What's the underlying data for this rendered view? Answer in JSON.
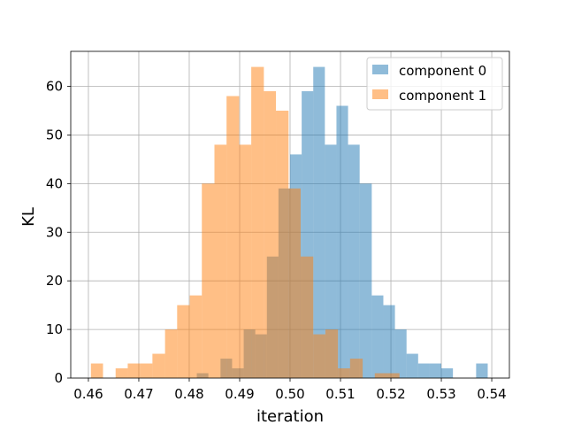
{
  "chart_data": {
    "type": "histogram",
    "xlabel": "iteration",
    "ylabel": "KL",
    "xlim": [
      0.4565,
      0.5435
    ],
    "ylim": [
      0,
      67.2
    ],
    "xticks": [
      0.46,
      0.47,
      0.48,
      0.49,
      0.5,
      0.51,
      0.52,
      0.53,
      0.54
    ],
    "xtick_labels": [
      "0.46",
      "0.47",
      "0.48",
      "0.49",
      "0.50",
      "0.51",
      "0.52",
      "0.53",
      "0.54"
    ],
    "yticks": [
      0,
      10,
      20,
      30,
      40,
      50,
      60
    ],
    "ytick_labels": [
      "0",
      "10",
      "20",
      "30",
      "40",
      "50",
      "60"
    ],
    "grid": true,
    "legend_position": "top-right",
    "series": [
      {
        "name": "component 0",
        "color": "#1f77b4",
        "alpha": 0.5,
        "bin_edges": [
          0.4815,
          0.4838,
          0.4862,
          0.4885,
          0.4908,
          0.4931,
          0.4954,
          0.4977,
          0.5,
          0.5023,
          0.5046,
          0.5069,
          0.5092,
          0.5115,
          0.5138,
          0.5162,
          0.5185,
          0.5208,
          0.5231,
          0.5254,
          0.5277,
          0.53,
          0.5323,
          0.5346,
          0.5369,
          0.5392
        ],
        "counts": [
          1,
          0,
          4,
          2,
          10,
          9,
          25,
          39,
          46,
          59,
          64,
          48,
          56,
          48,
          40,
          17,
          15,
          10,
          5,
          3,
          3,
          2,
          0,
          0,
          3
        ]
      },
      {
        "name": "component 1",
        "color": "#ff7f0e",
        "alpha": 0.5,
        "bin_edges": [
          0.4605,
          0.4629,
          0.4654,
          0.4678,
          0.4703,
          0.4727,
          0.4752,
          0.4776,
          0.4801,
          0.4825,
          0.485,
          0.4874,
          0.4899,
          0.4923,
          0.4948,
          0.4972,
          0.4997,
          0.5021,
          0.5046,
          0.507,
          0.5095,
          0.5119,
          0.5144,
          0.5168,
          0.5193,
          0.5217
        ],
        "counts": [
          3,
          0,
          2,
          3,
          3,
          5,
          10,
          15,
          17,
          40,
          48,
          58,
          48,
          64,
          59,
          55,
          39,
          25,
          9,
          10,
          2,
          4,
          0,
          1,
          1
        ]
      }
    ]
  }
}
